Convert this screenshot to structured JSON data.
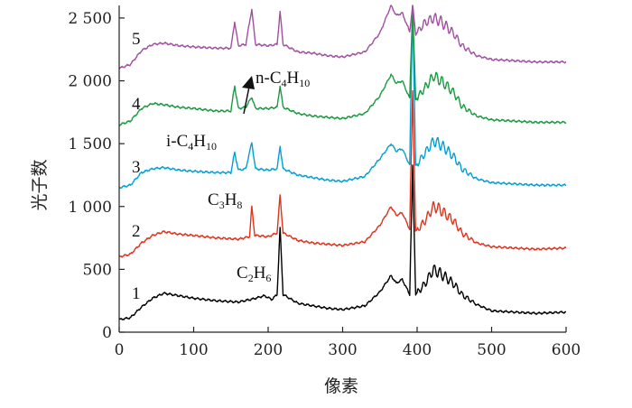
{
  "chart_data": {
    "type": "line",
    "title": "",
    "xlabel": "像素",
    "ylabel": "光子数",
    "xlim": [
      0,
      600
    ],
    "ylim": [
      0,
      2600
    ],
    "xticks": [
      "0",
      "100",
      "200",
      "300",
      "400",
      "600"
    ],
    "xticks_all": [
      "0",
      "100",
      "200",
      "300",
      "400",
      "500",
      "600"
    ],
    "yticks": [
      "0",
      "500",
      "1 000",
      "1 500",
      "2 000",
      "2 500"
    ],
    "grid": false,
    "legend": "none",
    "series": [
      {
        "label": "1",
        "color": "#000000",
        "baseline": 100,
        "points": [
          [
            0,
            100
          ],
          [
            15,
            115
          ],
          [
            30,
            200
          ],
          [
            45,
            270
          ],
          [
            60,
            310
          ],
          [
            80,
            290
          ],
          [
            100,
            270
          ],
          [
            130,
            250
          ],
          [
            160,
            240
          ],
          [
            180,
            265
          ],
          [
            195,
            290
          ],
          [
            205,
            260
          ],
          [
            212,
            300
          ],
          [
            216,
            830
          ],
          [
            220,
            300
          ],
          [
            240,
            230
          ],
          [
            260,
            210
          ],
          [
            280,
            190
          ],
          [
            300,
            180
          ],
          [
            330,
            210
          ],
          [
            350,
            320
          ],
          [
            365,
            450
          ],
          [
            372,
            390
          ],
          [
            380,
            420
          ],
          [
            390,
            300
          ],
          [
            394,
            1320
          ],
          [
            398,
            300
          ],
          [
            410,
            380
          ],
          [
            422,
            500
          ],
          [
            430,
            470
          ],
          [
            440,
            430
          ],
          [
            450,
            380
          ],
          [
            460,
            300
          ],
          [
            480,
            220
          ],
          [
            500,
            170
          ],
          [
            530,
            160
          ],
          [
            560,
            150
          ],
          [
            600,
            160
          ]
        ]
      },
      {
        "label": "2",
        "color": "#e0321c",
        "baseline": 600,
        "points": [
          [
            0,
            600
          ],
          [
            15,
            620
          ],
          [
            30,
            710
          ],
          [
            45,
            770
          ],
          [
            60,
            800
          ],
          [
            80,
            780
          ],
          [
            100,
            770
          ],
          [
            130,
            750
          ],
          [
            160,
            740
          ],
          [
            175,
            760
          ],
          [
            178,
            1000
          ],
          [
            182,
            770
          ],
          [
            200,
            760
          ],
          [
            212,
            790
          ],
          [
            216,
            1090
          ],
          [
            220,
            790
          ],
          [
            240,
            730
          ],
          [
            260,
            710
          ],
          [
            280,
            700
          ],
          [
            300,
            690
          ],
          [
            330,
            720
          ],
          [
            350,
            850
          ],
          [
            365,
            1000
          ],
          [
            372,
            930
          ],
          [
            380,
            950
          ],
          [
            390,
            820
          ],
          [
            394,
            1920
          ],
          [
            398,
            800
          ],
          [
            410,
            880
          ],
          [
            422,
            1000
          ],
          [
            430,
            980
          ],
          [
            440,
            930
          ],
          [
            450,
            880
          ],
          [
            460,
            790
          ],
          [
            480,
            710
          ],
          [
            500,
            680
          ],
          [
            530,
            670
          ],
          [
            560,
            660
          ],
          [
            600,
            670
          ]
        ]
      },
      {
        "label": "3",
        "color": "#00a0d6",
        "baseline": 1150,
        "points": [
          [
            0,
            1150
          ],
          [
            15,
            1170
          ],
          [
            30,
            1270
          ],
          [
            45,
            1300
          ],
          [
            60,
            1310
          ],
          [
            80,
            1290
          ],
          [
            100,
            1280
          ],
          [
            130,
            1270
          ],
          [
            150,
            1270
          ],
          [
            155,
            1430
          ],
          [
            160,
            1290
          ],
          [
            170,
            1300
          ],
          [
            178,
            1510
          ],
          [
            183,
            1300
          ],
          [
            200,
            1290
          ],
          [
            212,
            1300
          ],
          [
            216,
            1480
          ],
          [
            220,
            1300
          ],
          [
            240,
            1250
          ],
          [
            260,
            1230
          ],
          [
            280,
            1210
          ],
          [
            300,
            1200
          ],
          [
            330,
            1240
          ],
          [
            350,
            1380
          ],
          [
            365,
            1500
          ],
          [
            372,
            1440
          ],
          [
            380,
            1460
          ],
          [
            390,
            1330
          ],
          [
            394,
            2600
          ],
          [
            398,
            1320
          ],
          [
            410,
            1420
          ],
          [
            422,
            1520
          ],
          [
            430,
            1500
          ],
          [
            440,
            1450
          ],
          [
            450,
            1390
          ],
          [
            460,
            1300
          ],
          [
            480,
            1220
          ],
          [
            500,
            1190
          ],
          [
            530,
            1180
          ],
          [
            560,
            1170
          ],
          [
            600,
            1170
          ]
        ]
      },
      {
        "label": "4",
        "color": "#1a9a40",
        "baseline": 1650,
        "points": [
          [
            0,
            1650
          ],
          [
            15,
            1680
          ],
          [
            30,
            1780
          ],
          [
            45,
            1820
          ],
          [
            60,
            1810
          ],
          [
            80,
            1790
          ],
          [
            100,
            1780
          ],
          [
            130,
            1760
          ],
          [
            150,
            1760
          ],
          [
            155,
            1960
          ],
          [
            160,
            1780
          ],
          [
            170,
            1790
          ],
          [
            178,
            1870
          ],
          [
            183,
            1780
          ],
          [
            200,
            1780
          ],
          [
            212,
            1790
          ],
          [
            216,
            1960
          ],
          [
            220,
            1790
          ],
          [
            240,
            1740
          ],
          [
            260,
            1720
          ],
          [
            280,
            1710
          ],
          [
            300,
            1700
          ],
          [
            330,
            1740
          ],
          [
            350,
            1880
          ],
          [
            365,
            2050
          ],
          [
            372,
            1980
          ],
          [
            380,
            2000
          ],
          [
            390,
            1860
          ],
          [
            394,
            2600
          ],
          [
            398,
            1850
          ],
          [
            410,
            1940
          ],
          [
            422,
            2040
          ],
          [
            430,
            2010
          ],
          [
            440,
            1960
          ],
          [
            450,
            1900
          ],
          [
            460,
            1800
          ],
          [
            480,
            1720
          ],
          [
            500,
            1690
          ],
          [
            530,
            1680
          ],
          [
            560,
            1670
          ],
          [
            600,
            1670
          ]
        ]
      },
      {
        "label": "5",
        "color": "#a050a0",
        "baseline": 2100,
        "points": [
          [
            0,
            2100
          ],
          [
            15,
            2130
          ],
          [
            30,
            2240
          ],
          [
            45,
            2290
          ],
          [
            60,
            2300
          ],
          [
            80,
            2280
          ],
          [
            100,
            2270
          ],
          [
            130,
            2260
          ],
          [
            150,
            2260
          ],
          [
            155,
            2470
          ],
          [
            160,
            2280
          ],
          [
            170,
            2290
          ],
          [
            178,
            2570
          ],
          [
            183,
            2290
          ],
          [
            200,
            2280
          ],
          [
            212,
            2290
          ],
          [
            216,
            2550
          ],
          [
            220,
            2290
          ],
          [
            240,
            2230
          ],
          [
            260,
            2220
          ],
          [
            280,
            2200
          ],
          [
            300,
            2190
          ],
          [
            330,
            2230
          ],
          [
            350,
            2380
          ],
          [
            365,
            2600
          ],
          [
            372,
            2520
          ],
          [
            380,
            2540
          ],
          [
            390,
            2390
          ],
          [
            394,
            2600
          ],
          [
            398,
            2370
          ],
          [
            410,
            2460
          ],
          [
            422,
            2500
          ],
          [
            430,
            2480
          ],
          [
            440,
            2430
          ],
          [
            450,
            2370
          ],
          [
            460,
            2280
          ],
          [
            480,
            2200
          ],
          [
            500,
            2170
          ],
          [
            530,
            2160
          ],
          [
            560,
            2150
          ],
          [
            600,
            2150
          ]
        ]
      }
    ],
    "annotations": [
      {
        "text": "C",
        "sub": "2",
        "text2": "H",
        "sub2": "6"
      },
      {
        "text": "C",
        "sub": "3",
        "text2": "H",
        "sub2": "8"
      },
      {
        "text": "i-C",
        "sub": "4",
        "text2": "H",
        "sub2": "10"
      },
      {
        "text": "n-C",
        "sub": "4",
        "text2": "H",
        "sub2": "10"
      }
    ]
  }
}
